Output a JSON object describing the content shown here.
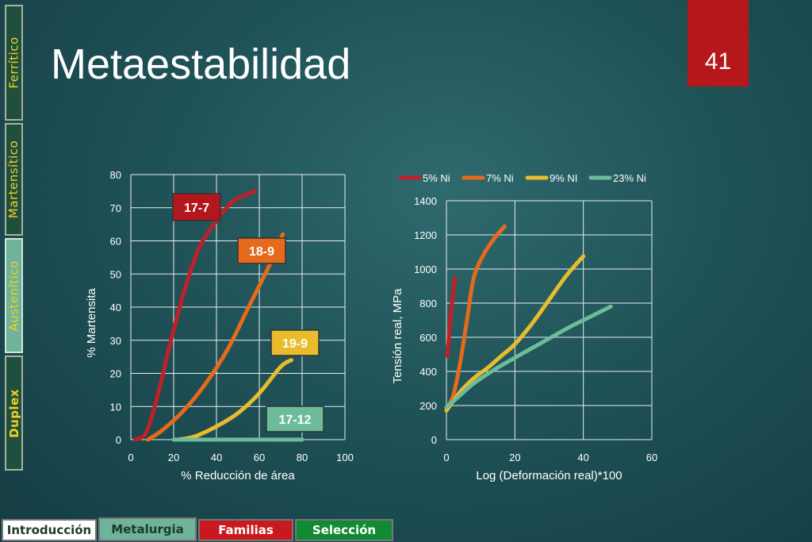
{
  "slide": {
    "title": "Metaestabilidad",
    "number": "41"
  },
  "side_tabs": [
    {
      "label": "Ferrítico"
    },
    {
      "label": "Martensítico"
    },
    {
      "label": "Austenítico"
    },
    {
      "label": "Duplex"
    }
  ],
  "nav_buttons": [
    {
      "label": "Introducción"
    },
    {
      "label": "Metalurgia"
    },
    {
      "label": "Familias"
    },
    {
      "label": "Selección"
    }
  ],
  "colors": {
    "red": "#c0202a",
    "orange": "#e56a1c",
    "yellow": "#e8bc2c",
    "green": "#6cbc9a"
  },
  "chart_data": [
    {
      "type": "line",
      "xlabel": "% Reducción de área",
      "ylabel": "% Martensita",
      "xlim": [
        0,
        100
      ],
      "ylim": [
        0,
        80
      ],
      "xticks": [
        0,
        20,
        40,
        60,
        80,
        100
      ],
      "yticks": [
        0,
        10,
        20,
        30,
        40,
        50,
        60,
        70,
        80
      ],
      "grid": true,
      "series": [
        {
          "name": "17-7",
          "color": "#c0202a",
          "label_fill": "#b3161c",
          "label_text": "#ffffff",
          "points": [
            [
              2,
              0
            ],
            [
              7,
              2
            ],
            [
              12,
              12
            ],
            [
              18,
              28
            ],
            [
              25,
              45
            ],
            [
              32,
              58
            ],
            [
              40,
              66
            ],
            [
              48,
              72
            ],
            [
              58,
              75
            ]
          ]
        },
        {
          "name": "18-9",
          "color": "#e56a1c",
          "label_fill": "#e56a1c",
          "label_text": "#ffffff",
          "points": [
            [
              8,
              0
            ],
            [
              15,
              3
            ],
            [
              25,
              9
            ],
            [
              35,
              17
            ],
            [
              45,
              27
            ],
            [
              55,
              40
            ],
            [
              65,
              53
            ],
            [
              71,
              62
            ]
          ]
        },
        {
          "name": "19-9",
          "color": "#e8bc2c",
          "label_fill": "#e8bc2c",
          "label_text": "#ffffff",
          "points": [
            [
              22,
              0
            ],
            [
              30,
              1
            ],
            [
              40,
              4
            ],
            [
              50,
              8
            ],
            [
              60,
              14
            ],
            [
              70,
              22
            ],
            [
              75,
              24
            ]
          ]
        },
        {
          "name": "17-12",
          "color": "#6cbc9a",
          "label_fill": "#6cbc9a",
          "label_text": "#ffffff",
          "points": [
            [
              20,
              0
            ],
            [
              40,
              0
            ],
            [
              60,
              0
            ],
            [
              80,
              0
            ]
          ]
        }
      ]
    },
    {
      "type": "line",
      "xlabel": "Log (Deformación real)*100",
      "ylabel": "Tensión real, MPa",
      "xlim": [
        0,
        60
      ],
      "ylim": [
        0,
        1400
      ],
      "xticks": [
        0,
        20,
        40,
        60
      ],
      "yticks": [
        0,
        200,
        400,
        600,
        800,
        1000,
        1200,
        1400
      ],
      "grid": true,
      "legend": "top",
      "series": [
        {
          "name": "5% Ni",
          "color": "#c0202a",
          "points": [
            [
              0.3,
              490
            ],
            [
              1,
              680
            ],
            [
              1.8,
              830
            ],
            [
              2.5,
              950
            ]
          ]
        },
        {
          "name": "7% Ni",
          "color": "#e56a1c",
          "points": [
            [
              0,
              180
            ],
            [
              2,
              260
            ],
            [
              4,
              450
            ],
            [
              6,
              700
            ],
            [
              8,
              950
            ],
            [
              11,
              1090
            ],
            [
              14,
              1180
            ],
            [
              17,
              1250
            ]
          ]
        },
        {
          "name": "9% NI",
          "color": "#e8bc2c",
          "points": [
            [
              0,
              170
            ],
            [
              4,
              280
            ],
            [
              8,
              360
            ],
            [
              12,
              420
            ],
            [
              16,
              490
            ],
            [
              20,
              560
            ],
            [
              25,
              680
            ],
            [
              30,
              820
            ],
            [
              35,
              960
            ],
            [
              40,
              1075
            ]
          ]
        },
        {
          "name": "23% Ni",
          "color": "#6cbc9a",
          "points": [
            [
              0,
              190
            ],
            [
              4,
              260
            ],
            [
              8,
              330
            ],
            [
              14,
              410
            ],
            [
              20,
              480
            ],
            [
              28,
              570
            ],
            [
              36,
              660
            ],
            [
              42,
              720
            ],
            [
              48,
              780
            ]
          ]
        }
      ]
    }
  ]
}
